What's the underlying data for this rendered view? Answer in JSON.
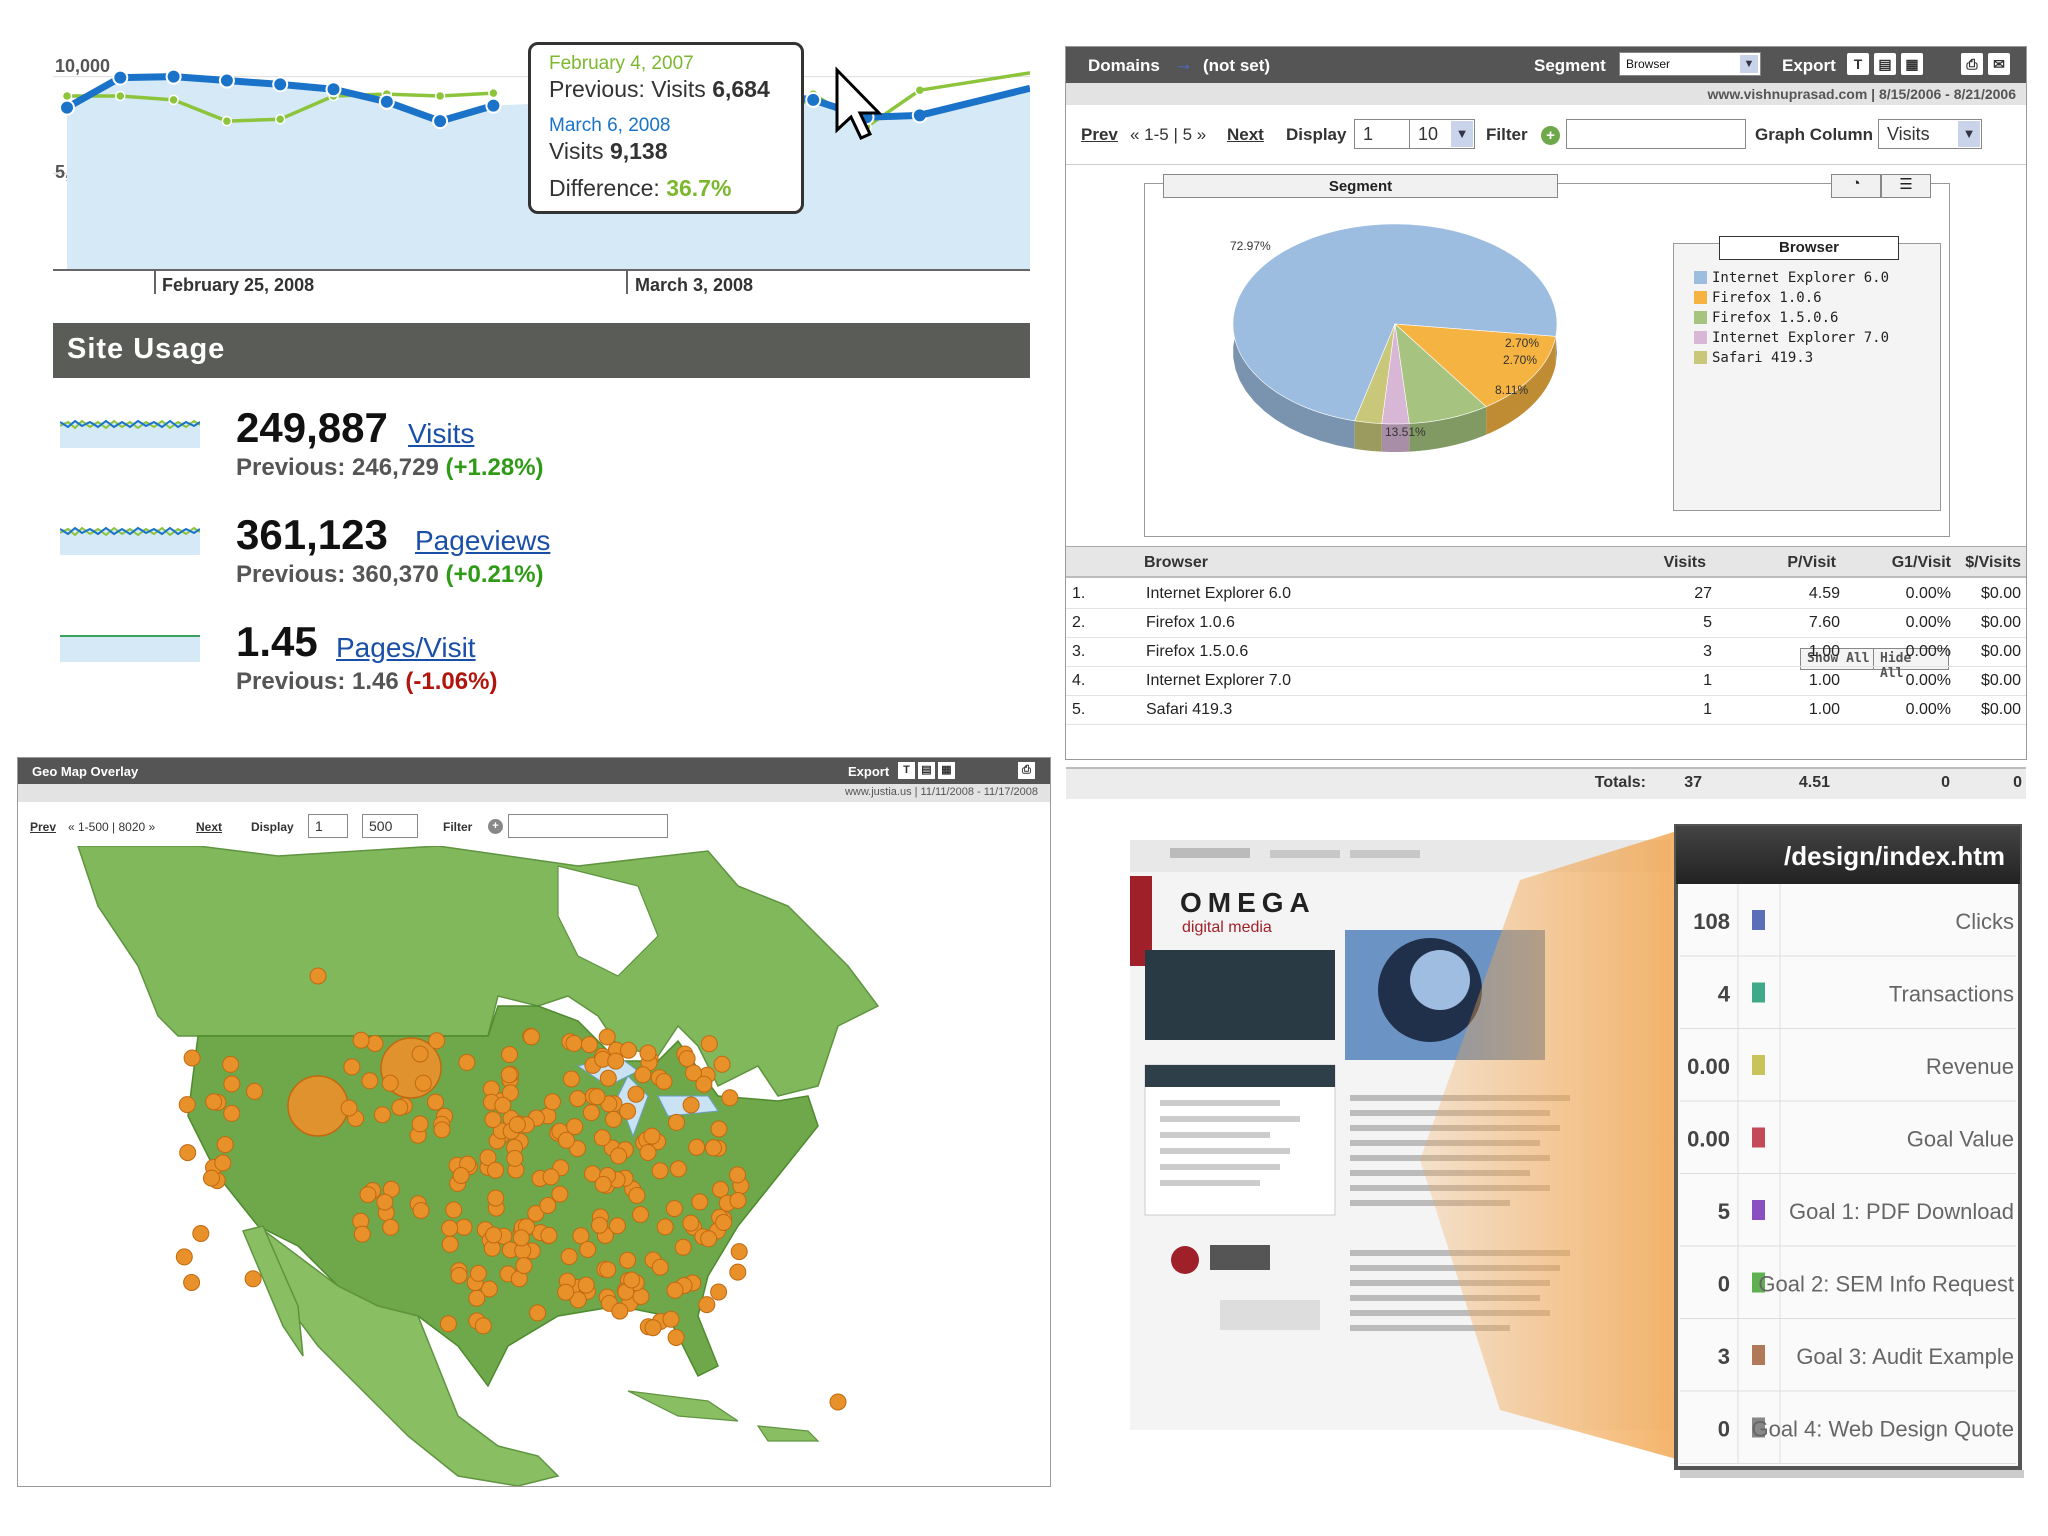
{
  "colors": {
    "this_period": "#1a73c9",
    "previous_period": "#8cc43c",
    "positive": "#2f9a15",
    "negative": "#b1160e",
    "header_bar": "#555555",
    "map_land": "#6fa84a",
    "map_bubble": "#e8902a"
  },
  "trend_chart": {
    "y_ticks": [
      "10,000",
      "5,000"
    ],
    "x_labels": [
      "February 25, 2008",
      "March 3, 2008"
    ],
    "tooltip": {
      "prev_date": "February 4, 2007",
      "prev_label": "Previous: Visits",
      "prev_value": "6,684",
      "cur_date": "March 6, 2008",
      "cur_label": "Visits",
      "cur_value": "9,138",
      "diff_label": "Difference:",
      "diff_value": "36.7%"
    },
    "chart_data": {
      "type": "line",
      "ylim": [
        0,
        12000
      ],
      "series": [
        {
          "values": [
            8400,
            9950,
            10000,
            9800,
            9600,
            9350,
            8700,
            7700,
            8500,
            null,
            null,
            null,
            null,
            9138,
            8800,
            7900,
            8000
          ]
        },
        {
          "values": [
            9000,
            9000,
            8800,
            7700,
            7800,
            9000,
            9100,
            9000,
            9150,
            null,
            null,
            null,
            null,
            6684,
            9100,
            7400,
            9300
          ]
        }
      ]
    }
  },
  "site_usage": {
    "title": "Site Usage",
    "metrics": [
      {
        "value": "249,887",
        "label": "Visits",
        "prev": "Previous: 246,729",
        "change": "(+1.28%)",
        "dir": "pos"
      },
      {
        "value": "361,123",
        "label": "Pageviews",
        "prev": "Previous: 360,370",
        "change": "(+0.21%)",
        "dir": "pos"
      },
      {
        "value": "1.45",
        "label": "Pages/Visit",
        "prev": "Previous: 1.46",
        "change": "(-1.06%)",
        "dir": "neg"
      }
    ]
  },
  "segment_report": {
    "crumb1": "Domains",
    "arrow": "→",
    "crumb2": "(not set)",
    "segment_label": "Segment",
    "segment_value": "Browser",
    "export_label": "Export",
    "site_range": "www.vishnuprasad.com  |  8/15/2006 - 8/21/2006",
    "prev": "Prev",
    "pager": "« 1-5 | 5 »",
    "next": "Next",
    "display_label": "Display",
    "display_start": "1",
    "display_count": "10",
    "filter_label": "Filter",
    "filter_value": "",
    "graph_col_label": "Graph Column",
    "graph_col_value": "Visits",
    "pie_title": "Segment",
    "legend_title": "Browser",
    "show_all": "Show All",
    "hide_all": "Hide All",
    "pie_labels": [
      "72.97%",
      "13.51%",
      "8.11%",
      "2.70%",
      "2.70%"
    ],
    "chart_data": {
      "type": "pie",
      "categories": [
        "Internet Explorer 6.0",
        "Firefox 1.0.6",
        "Firefox 1.5.0.6",
        "Internet Explorer 7.0",
        "Safari 419.3"
      ],
      "values": [
        72.97,
        13.51,
        8.11,
        2.7,
        2.7
      ],
      "colors": [
        "#9dbde0",
        "#f5b342",
        "#a6c47f",
        "#d8b6d6",
        "#c8c77a"
      ]
    },
    "columns": [
      "Browser",
      "Visits",
      "P/Visit",
      "G1/Visit",
      "$/Visits"
    ],
    "rows": [
      {
        "n": "1.",
        "browser": "Internet Explorer 6.0",
        "visits": "27",
        "pv": "4.59",
        "g1": "0.00%",
        "dv": "$0.00"
      },
      {
        "n": "2.",
        "browser": "Firefox 1.0.6",
        "visits": "5",
        "pv": "7.60",
        "g1": "0.00%",
        "dv": "$0.00"
      },
      {
        "n": "3.",
        "browser": "Firefox 1.5.0.6",
        "visits": "3",
        "pv": "1.00",
        "g1": "0.00%",
        "dv": "$0.00"
      },
      {
        "n": "4.",
        "browser": "Internet Explorer 7.0",
        "visits": "1",
        "pv": "1.00",
        "g1": "0.00%",
        "dv": "$0.00"
      },
      {
        "n": "5.",
        "browser": "Safari 419.3",
        "visits": "1",
        "pv": "1.00",
        "g1": "0.00%",
        "dv": "$0.00"
      }
    ],
    "totals": {
      "label": "Totals:",
      "visits": "37",
      "pv": "4.51",
      "g1": "0",
      "dv": "0"
    }
  },
  "geo_map": {
    "title": "Geo Map Overlay",
    "export_label": "Export",
    "site_range": "www.justia.us  |  11/11/2008 - 11/17/2008",
    "prev": "Prev",
    "pager": "« 1-500 | 8020 »",
    "next": "Next",
    "display_label": "Display",
    "display_start": "1",
    "display_count": "500",
    "filter_label": "Filter"
  },
  "site_overlay": {
    "page_path": "/design/index.htm",
    "brand": "OMEGA",
    "brand_sub": "digital media",
    "metrics": [
      {
        "value": "108",
        "label": "Clicks",
        "color": "#5a6fb8"
      },
      {
        "value": "4",
        "label": "Transactions",
        "color": "#3fa98a"
      },
      {
        "value": "0.00",
        "label": "Revenue",
        "color": "#c9c45a"
      },
      {
        "value": "0.00",
        "label": "Goal Value",
        "color": "#c44a5a"
      },
      {
        "value": "5",
        "label": "Goal 1: PDF Download",
        "color": "#8a4fc0"
      },
      {
        "value": "0",
        "label": "Goal 2: SEM Info Request",
        "color": "#5fb050"
      },
      {
        "value": "3",
        "label": "Goal 3: Audit Example",
        "color": "#b07a58"
      },
      {
        "value": "0",
        "label": "Goal 4: Web Design Quote",
        "color": "#888888"
      }
    ]
  }
}
